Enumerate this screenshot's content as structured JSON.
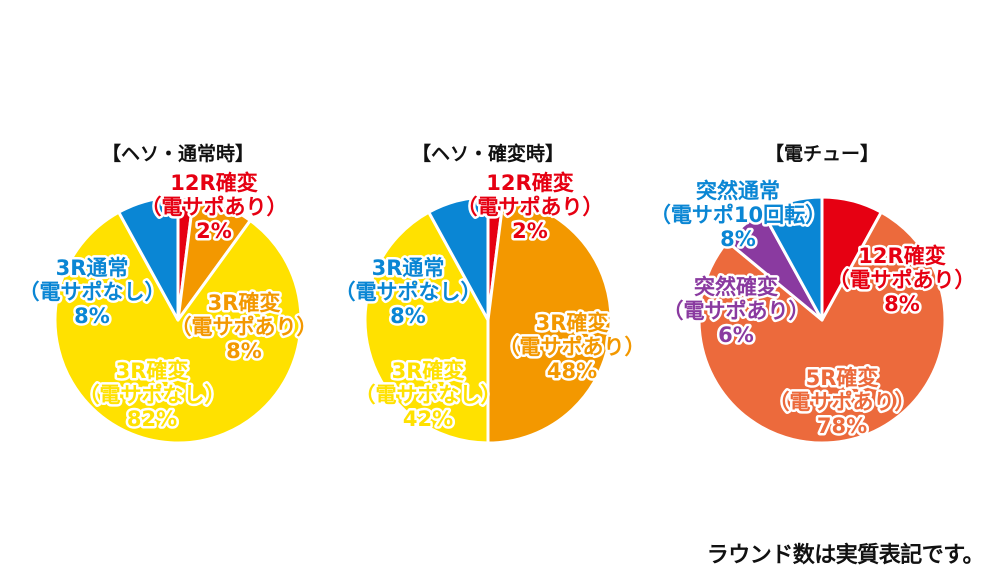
{
  "colors": {
    "red": "#e60012",
    "orange": "#f39800",
    "yellow": "#ffe100",
    "blue": "#0a86d4",
    "purple": "#8a3aa0",
    "coral": "#ec6a3c",
    "separator": "#ffffff"
  },
  "chart_data": [
    {
      "type": "pie",
      "title": "【ヘソ・通常時】",
      "slices": [
        {
          "name": "12R確変（電サポあり）",
          "value": 2,
          "label_lines": [
            "12R確変",
            "（電サポあり）",
            "2%"
          ],
          "color": "#e60012"
        },
        {
          "name": "3R確変（電サポあり）",
          "value": 8,
          "label_lines": [
            "3R確変",
            "（電サポあり）",
            "8%"
          ],
          "color": "#f39800"
        },
        {
          "name": "3R確変（電サポなし）",
          "value": 82,
          "label_lines": [
            "3R確変",
            "（電サポなし）",
            "82%"
          ],
          "color": "#ffe100"
        },
        {
          "name": "3R通常（電サポなし）",
          "value": 8,
          "label_lines": [
            "3R通常",
            "（電サポなし）",
            "8%"
          ],
          "color": "#0a86d4"
        }
      ]
    },
    {
      "type": "pie",
      "title": "【ヘソ・確変時】",
      "slices": [
        {
          "name": "12R確変（電サポあり）",
          "value": 2,
          "label_lines": [
            "12R確変",
            "（電サポあり）",
            "2%"
          ],
          "color": "#e60012"
        },
        {
          "name": "3R確変（電サポあり）",
          "value": 48,
          "label_lines": [
            "3R確変",
            "（電サポあり）",
            "48%"
          ],
          "color": "#f39800"
        },
        {
          "name": "3R確変（電サポなし）",
          "value": 42,
          "label_lines": [
            "3R確変",
            "（電サポなし）",
            "42%"
          ],
          "color": "#ffe100"
        },
        {
          "name": "3R通常（電サポなし）",
          "value": 8,
          "label_lines": [
            "3R通常",
            "（電サポなし）",
            "8%"
          ],
          "color": "#0a86d4"
        }
      ]
    },
    {
      "type": "pie",
      "title": "【電チュー】",
      "slices": [
        {
          "name": "12R確変（電サポあり）",
          "value": 8,
          "label_lines": [
            "12R確変",
            "（電サポあり）",
            "8%"
          ],
          "color": "#e60012"
        },
        {
          "name": "5R確変（電サポあり）",
          "value": 78,
          "label_lines": [
            "5R確変",
            "（電サポあり）",
            "78%"
          ],
          "color": "#ec6a3c"
        },
        {
          "name": "突然確変（電サポあり）",
          "value": 6,
          "label_lines": [
            "突然確変",
            "（電サポあり）",
            "6%"
          ],
          "color": "#8a3aa0"
        },
        {
          "name": "突然通常（電サポ10回転）",
          "value": 8,
          "label_lines": [
            "突然通常",
            "（電サポ10回転）",
            "8%"
          ],
          "color": "#0a86d4"
        }
      ]
    }
  ],
  "footnote": "ラウンド数は実質表記です。"
}
